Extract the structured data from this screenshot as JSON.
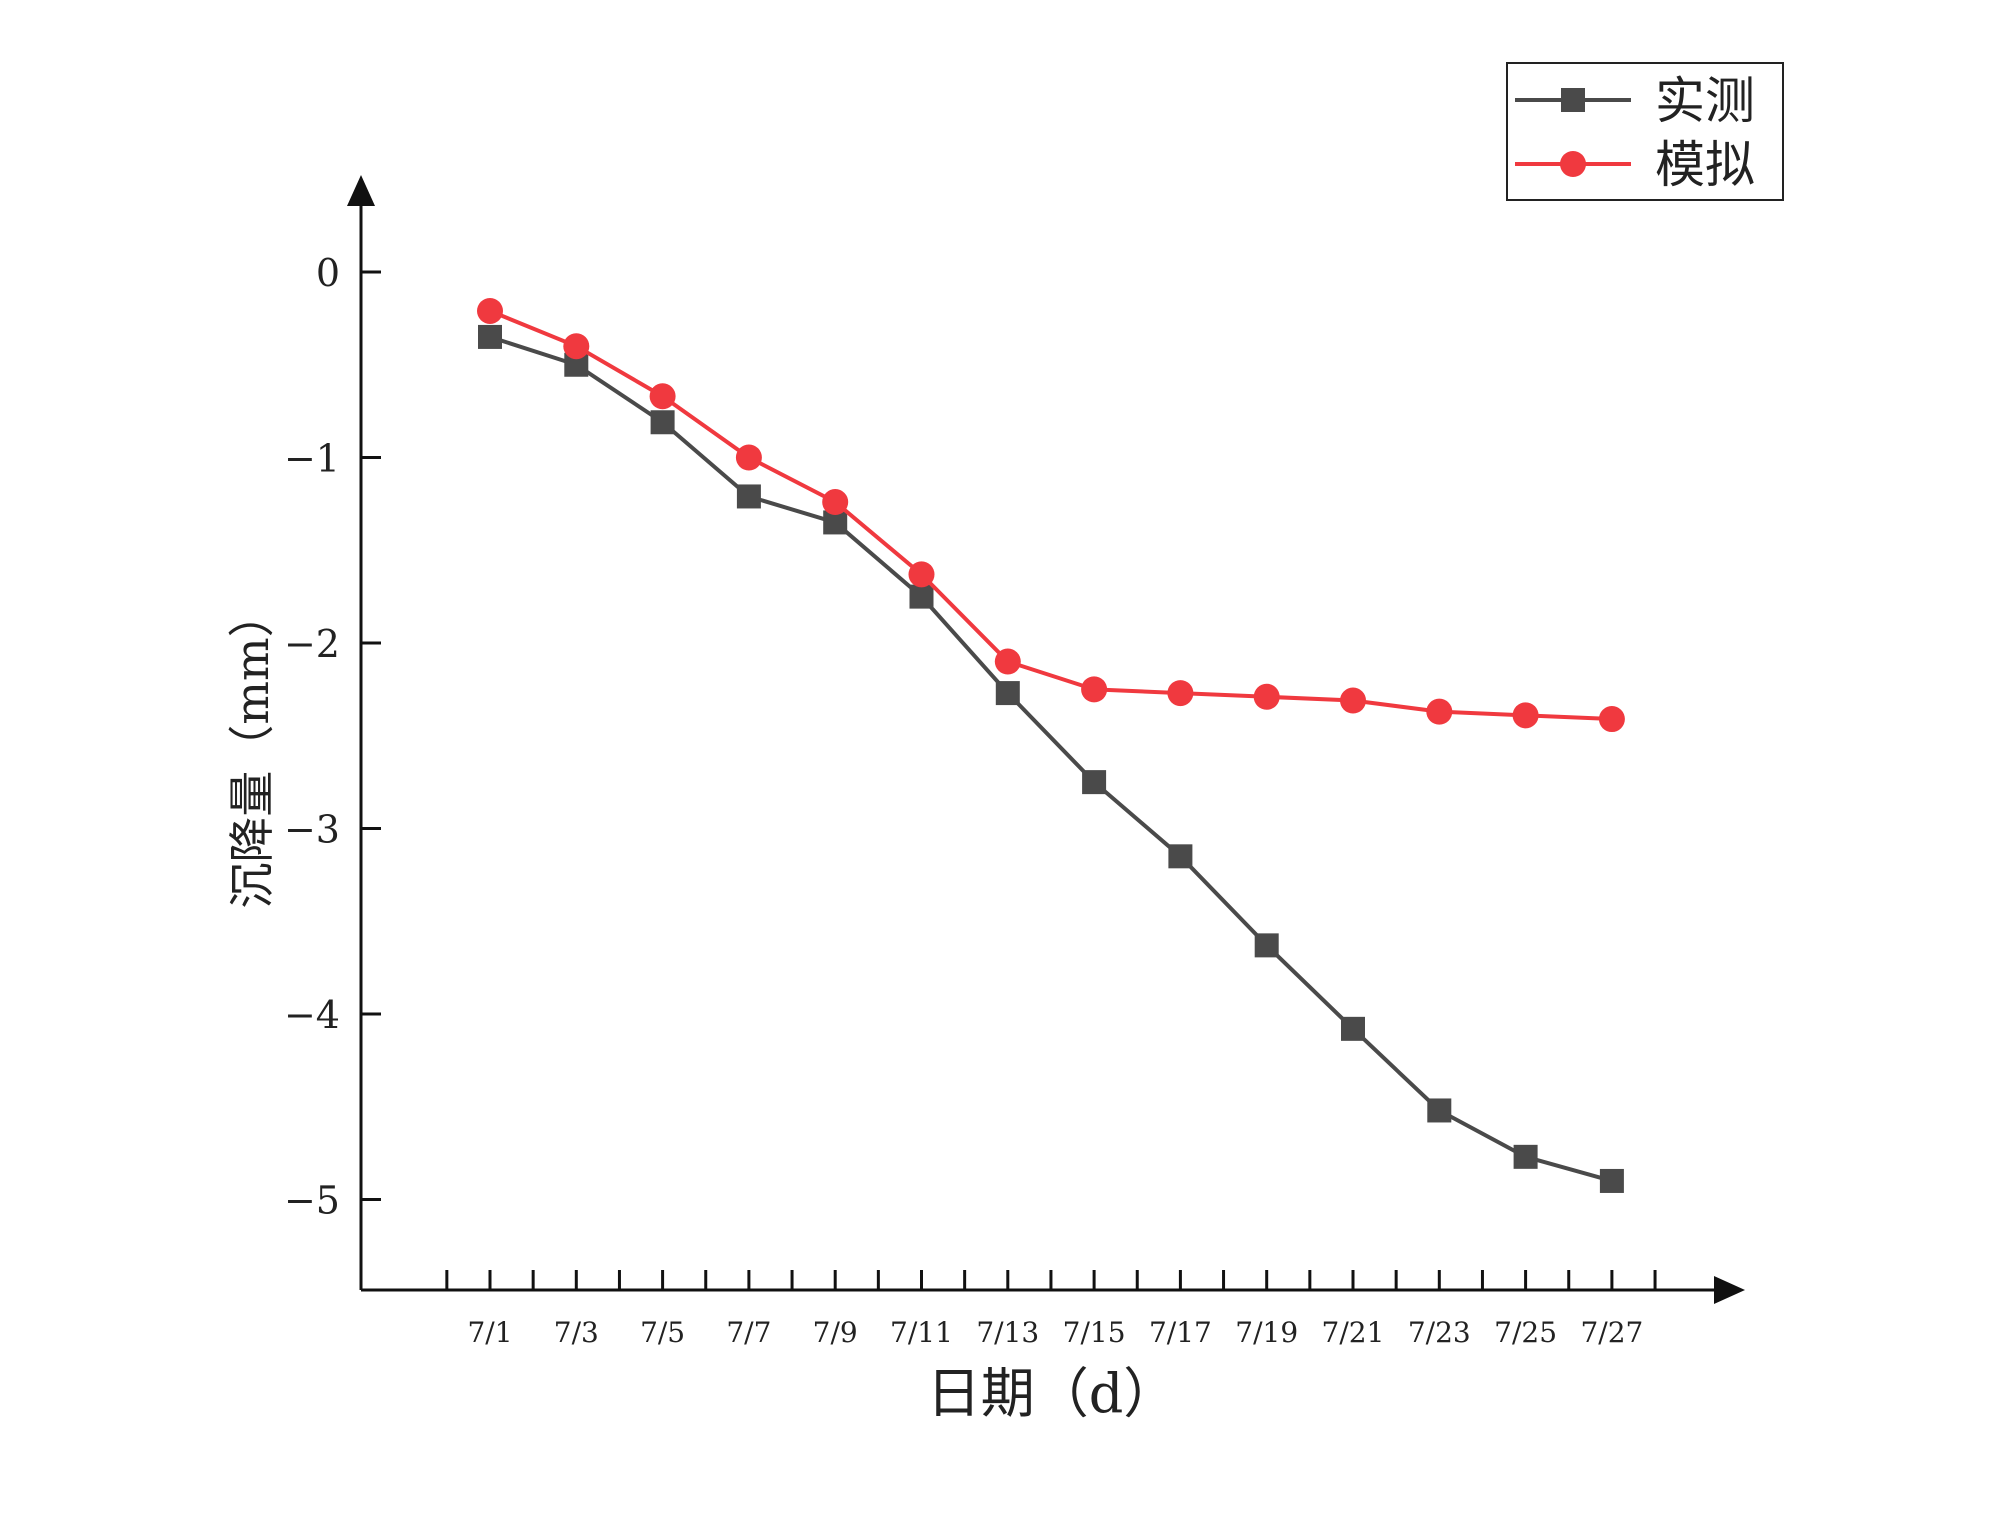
{
  "chart_data": {
    "type": "line",
    "title": "",
    "xlabel": "日期（d）",
    "ylabel": "沉降量（mm）",
    "categories": [
      "7/1",
      "7/3",
      "7/5",
      "7/7",
      "7/9",
      "7/11",
      "7/13",
      "7/15",
      "7/17",
      "7/19",
      "7/21",
      "7/23",
      "7/25",
      "7/27"
    ],
    "ylim": [
      -5.5,
      0.5
    ],
    "yticks": [
      0,
      -1,
      -2,
      -3,
      -4,
      -5
    ],
    "ytick_labels": [
      "0",
      "−1",
      "−2",
      "−3",
      "−4",
      "−5"
    ],
    "grid": false,
    "legend_position": "top-right",
    "series": [
      {
        "name": "实测",
        "marker": "square",
        "color": "#4a4a4a",
        "values": [
          -0.35,
          -0.5,
          -0.81,
          -1.21,
          -1.35,
          -1.75,
          -2.27,
          -2.75,
          -3.15,
          -3.63,
          -4.08,
          -4.52,
          -4.77,
          -4.9
        ]
      },
      {
        "name": "模拟",
        "marker": "circle",
        "color": "#f0393f",
        "values": [
          -0.21,
          -0.4,
          -0.67,
          -1.0,
          -1.24,
          -1.63,
          -2.1,
          -2.25,
          -2.27,
          -2.29,
          -2.31,
          -2.37,
          -2.39,
          -2.41
        ]
      }
    ]
  }
}
